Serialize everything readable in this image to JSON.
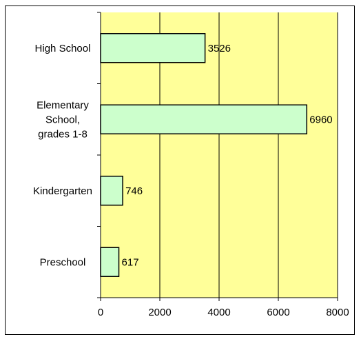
{
  "chart_data": {
    "type": "bar",
    "orientation": "horizontal",
    "categories": [
      "High School",
      "Elementary School, grades 1-8",
      "Kindergarten",
      "Preschool"
    ],
    "category_label_lines": [
      [
        "High School"
      ],
      [
        "Elementary",
        "School,",
        "grades 1-8"
      ],
      [
        "Kindergarten"
      ],
      [
        "Preschool"
      ]
    ],
    "values": [
      3526,
      6960,
      746,
      617
    ],
    "value_labels": [
      "3526",
      "6960",
      "746",
      "617"
    ],
    "xlim": [
      0,
      8000
    ],
    "xticks": [
      0,
      2000,
      4000,
      6000,
      8000
    ],
    "xtick_labels": [
      "0",
      "2000",
      "4000",
      "6000",
      "8000"
    ],
    "grid": "vertical",
    "legend": "none",
    "title": "",
    "xlabel": "",
    "ylabel": "",
    "colors": {
      "plot_background": "#ffff99",
      "bar_fill": "#ccffcc",
      "bar_stroke": "#000000",
      "gridline": "#000000"
    }
  }
}
